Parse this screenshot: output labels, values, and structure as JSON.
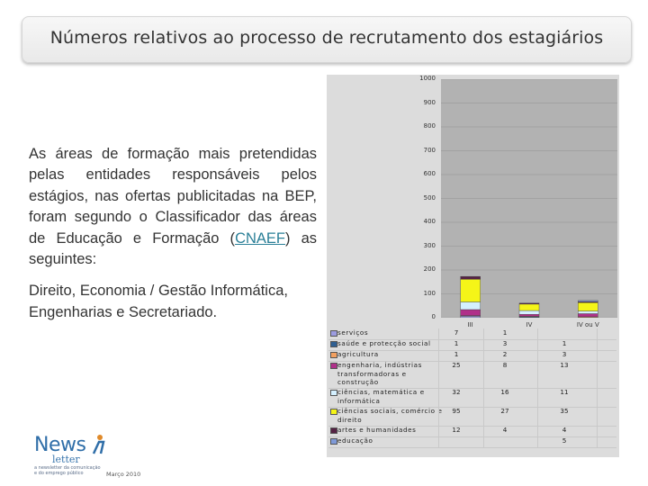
{
  "slide": {
    "title": "Números relativos ao processo de recrutamento dos estagiários",
    "paragraph1_before_link": "As áreas de formação mais pretendidas pelas entidades responsáveis pelos estágios, nas ofertas publicitadas na BEP, foram segundo o Classificador das áreas de Educação e Formação (",
    "paragraph1_link": "CNAEF",
    "paragraph1_after_link": ") as seguintes:",
    "paragraph2": "Direito, Economia / Gestão Informática, Engenharias e Secretariado."
  },
  "logo": {
    "news": "News",
    "letter": "letter",
    "tagline": "a newsletter da comunicação e do emprego público",
    "date": "Março 2010"
  },
  "chart_data": {
    "type": "bar",
    "stacked": true,
    "categories": [
      "III",
      "IV",
      "IV ou V"
    ],
    "ylim": [
      0,
      1000
    ],
    "yticks": [
      "0",
      "100",
      "200",
      "300",
      "400",
      "500",
      "600",
      "700",
      "800",
      "900",
      "1000"
    ],
    "grid": true,
    "series": [
      {
        "name": "serviços",
        "color": "#9c9ce0",
        "values": [
          7,
          1,
          null
        ]
      },
      {
        "name": "saúde e protecção social",
        "color": "#2f5f92",
        "values": [
          1,
          3,
          1
        ]
      },
      {
        "name": "agricultura",
        "color": "#f2a060",
        "values": [
          1,
          2,
          3
        ]
      },
      {
        "name": "engenharia, indústrias transformadoras e construção",
        "color": "#b0308a",
        "values": [
          25,
          8,
          13
        ]
      },
      {
        "name": "ciências, matemática e informática",
        "color": "#d4f0ff",
        "values": [
          32,
          16,
          11
        ]
      },
      {
        "name": "ciências sociais, comércio e direito",
        "color": "#f5f518",
        "values": [
          95,
          27,
          35
        ]
      },
      {
        "name": "artes e humanidades",
        "color": "#552244",
        "values": [
          12,
          4,
          4
        ]
      },
      {
        "name": "educação",
        "color": "#7f9ad8",
        "values": [
          null,
          null,
          5
        ]
      }
    ]
  }
}
